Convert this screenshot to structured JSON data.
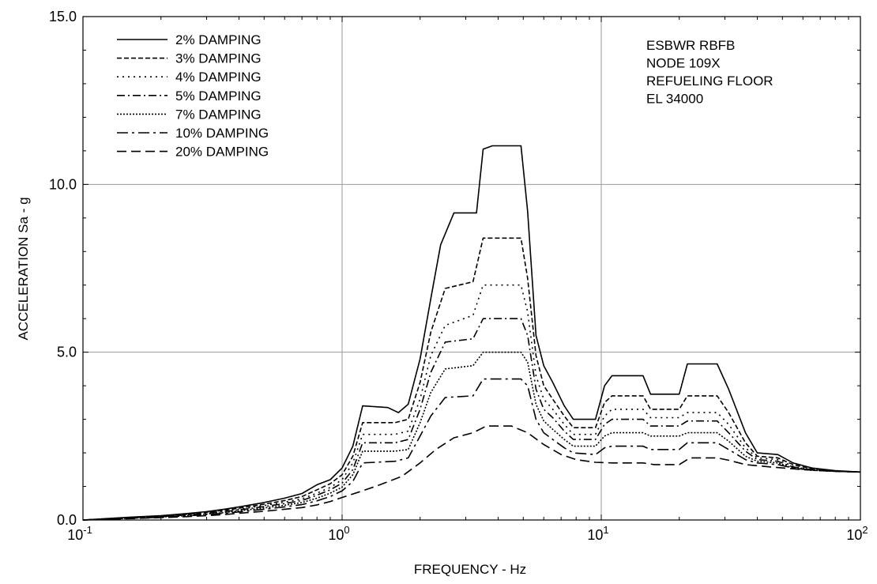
{
  "chart_data": {
    "type": "line",
    "title": "",
    "xlabel": "FREQUENCY - Hz",
    "ylabel": "ACCELERATION Sa - g",
    "x_scale": "log",
    "xlim": [
      0.1,
      100
    ],
    "ylim": [
      0,
      15
    ],
    "grid": true,
    "legend_placement": "top-left",
    "x_tick_labels": [
      {
        "base": "10",
        "exp": "-1"
      },
      {
        "base": "10",
        "exp": "0"
      },
      {
        "base": "10",
        "exp": "1"
      },
      {
        "base": "10",
        "exp": "2"
      }
    ],
    "y_tick_labels": [
      "0.0",
      "5.0",
      "10.0",
      "15.0"
    ],
    "annotations": [
      "ESBWR RBFB",
      "NODE 109X",
      "REFUELING FLOOR",
      "EL 34000"
    ],
    "series": [
      {
        "name": "2% DAMPING",
        "dash": "solid",
        "points": [
          [
            0.1,
            0.0
          ],
          [
            0.15,
            0.08
          ],
          [
            0.2,
            0.13
          ],
          [
            0.25,
            0.19
          ],
          [
            0.3,
            0.25
          ],
          [
            0.35,
            0.32
          ],
          [
            0.4,
            0.39
          ],
          [
            0.5,
            0.52
          ],
          [
            0.6,
            0.65
          ],
          [
            0.7,
            0.79
          ],
          [
            0.8,
            1.05
          ],
          [
            0.9,
            1.2
          ],
          [
            1.0,
            1.55
          ],
          [
            1.1,
            2.2
          ],
          [
            1.2,
            3.4
          ],
          [
            1.5,
            3.35
          ],
          [
            1.65,
            3.2
          ],
          [
            1.8,
            3.45
          ],
          [
            2.0,
            4.8
          ],
          [
            2.2,
            6.6
          ],
          [
            2.4,
            8.2
          ],
          [
            2.7,
            9.15
          ],
          [
            3.3,
            9.15
          ],
          [
            3.5,
            11.05
          ],
          [
            3.8,
            11.15
          ],
          [
            4.9,
            11.15
          ],
          [
            5.2,
            9.2
          ],
          [
            5.6,
            5.5
          ],
          [
            6.0,
            4.6
          ],
          [
            6.5,
            4.1
          ],
          [
            7.2,
            3.4
          ],
          [
            7.8,
            3.0
          ],
          [
            9.5,
            3.0
          ],
          [
            10.3,
            4.0
          ],
          [
            11.0,
            4.3
          ],
          [
            14.5,
            4.3
          ],
          [
            15.5,
            3.75
          ],
          [
            20.0,
            3.75
          ],
          [
            21.5,
            4.65
          ],
          [
            28.0,
            4.65
          ],
          [
            31.0,
            3.9
          ],
          [
            36.0,
            2.6
          ],
          [
            40.0,
            2.0
          ],
          [
            48.0,
            1.95
          ],
          [
            55.0,
            1.7
          ],
          [
            65.0,
            1.55
          ],
          [
            80.0,
            1.47
          ],
          [
            100.0,
            1.43
          ]
        ]
      },
      {
        "name": "3% DAMPING",
        "dash": "6,3",
        "points": [
          [
            0.1,
            0.0
          ],
          [
            0.15,
            0.07
          ],
          [
            0.2,
            0.12
          ],
          [
            0.25,
            0.17
          ],
          [
            0.3,
            0.23
          ],
          [
            0.35,
            0.29
          ],
          [
            0.4,
            0.35
          ],
          [
            0.5,
            0.47
          ],
          [
            0.6,
            0.58
          ],
          [
            0.7,
            0.7
          ],
          [
            0.8,
            0.9
          ],
          [
            0.9,
            1.08
          ],
          [
            1.0,
            1.35
          ],
          [
            1.1,
            1.9
          ],
          [
            1.2,
            2.9
          ],
          [
            1.6,
            2.9
          ],
          [
            1.8,
            3.0
          ],
          [
            2.0,
            4.1
          ],
          [
            2.2,
            5.6
          ],
          [
            2.5,
            6.9
          ],
          [
            3.2,
            7.1
          ],
          [
            3.5,
            8.4
          ],
          [
            4.9,
            8.4
          ],
          [
            5.2,
            7.2
          ],
          [
            5.6,
            4.9
          ],
          [
            6.0,
            4.0
          ],
          [
            6.5,
            3.6
          ],
          [
            7.2,
            3.1
          ],
          [
            7.8,
            2.75
          ],
          [
            9.5,
            2.75
          ],
          [
            10.3,
            3.5
          ],
          [
            11.0,
            3.7
          ],
          [
            14.5,
            3.7
          ],
          [
            15.5,
            3.3
          ],
          [
            20.0,
            3.3
          ],
          [
            21.5,
            3.7
          ],
          [
            28.0,
            3.7
          ],
          [
            31.0,
            3.2
          ],
          [
            36.0,
            2.3
          ],
          [
            40.0,
            1.9
          ],
          [
            48.0,
            1.85
          ],
          [
            55.0,
            1.65
          ],
          [
            65.0,
            1.53
          ],
          [
            80.0,
            1.46
          ],
          [
            100.0,
            1.43
          ]
        ]
      },
      {
        "name": "4% DAMPING",
        "dash": "2,5",
        "points": [
          [
            0.1,
            0.0
          ],
          [
            0.15,
            0.06
          ],
          [
            0.2,
            0.11
          ],
          [
            0.25,
            0.16
          ],
          [
            0.3,
            0.21
          ],
          [
            0.35,
            0.27
          ],
          [
            0.4,
            0.32
          ],
          [
            0.5,
            0.43
          ],
          [
            0.6,
            0.53
          ],
          [
            0.7,
            0.63
          ],
          [
            0.8,
            0.8
          ],
          [
            0.9,
            0.97
          ],
          [
            1.0,
            1.2
          ],
          [
            1.1,
            1.7
          ],
          [
            1.2,
            2.55
          ],
          [
            1.6,
            2.55
          ],
          [
            1.8,
            2.65
          ],
          [
            2.0,
            3.6
          ],
          [
            2.2,
            4.9
          ],
          [
            2.5,
            5.8
          ],
          [
            3.2,
            6.1
          ],
          [
            3.5,
            7.0
          ],
          [
            4.9,
            7.0
          ],
          [
            5.2,
            6.2
          ],
          [
            5.6,
            4.3
          ],
          [
            6.0,
            3.6
          ],
          [
            6.5,
            3.3
          ],
          [
            7.2,
            2.85
          ],
          [
            7.8,
            2.55
          ],
          [
            9.5,
            2.55
          ],
          [
            10.3,
            3.1
          ],
          [
            11.0,
            3.3
          ],
          [
            14.5,
            3.3
          ],
          [
            15.5,
            3.05
          ],
          [
            20.0,
            3.05
          ],
          [
            21.5,
            3.2
          ],
          [
            28.0,
            3.2
          ],
          [
            31.0,
            2.85
          ],
          [
            36.0,
            2.15
          ],
          [
            40.0,
            1.85
          ],
          [
            48.0,
            1.8
          ],
          [
            55.0,
            1.6
          ],
          [
            65.0,
            1.5
          ],
          [
            80.0,
            1.45
          ],
          [
            100.0,
            1.43
          ]
        ]
      },
      {
        "name": "5% DAMPING",
        "dash": "10,4,2,4",
        "points": [
          [
            0.1,
            0.0
          ],
          [
            0.15,
            0.06
          ],
          [
            0.2,
            0.1
          ],
          [
            0.25,
            0.15
          ],
          [
            0.3,
            0.2
          ],
          [
            0.35,
            0.25
          ],
          [
            0.4,
            0.3
          ],
          [
            0.5,
            0.4
          ],
          [
            0.6,
            0.49
          ],
          [
            0.7,
            0.58
          ],
          [
            0.8,
            0.74
          ],
          [
            0.9,
            0.9
          ],
          [
            1.0,
            1.1
          ],
          [
            1.1,
            1.5
          ],
          [
            1.2,
            2.3
          ],
          [
            1.6,
            2.3
          ],
          [
            1.8,
            2.4
          ],
          [
            2.0,
            3.3
          ],
          [
            2.2,
            4.4
          ],
          [
            2.5,
            5.3
          ],
          [
            3.2,
            5.4
          ],
          [
            3.5,
            6.0
          ],
          [
            4.9,
            6.0
          ],
          [
            5.2,
            5.5
          ],
          [
            5.6,
            3.9
          ],
          [
            6.0,
            3.3
          ],
          [
            6.5,
            3.05
          ],
          [
            7.2,
            2.65
          ],
          [
            7.8,
            2.4
          ],
          [
            9.5,
            2.4
          ],
          [
            10.3,
            2.85
          ],
          [
            11.0,
            3.0
          ],
          [
            14.5,
            3.0
          ],
          [
            15.5,
            2.8
          ],
          [
            20.0,
            2.8
          ],
          [
            21.5,
            2.95
          ],
          [
            28.0,
            2.95
          ],
          [
            31.0,
            2.6
          ],
          [
            36.0,
            2.05
          ],
          [
            40.0,
            1.8
          ],
          [
            48.0,
            1.75
          ],
          [
            55.0,
            1.58
          ],
          [
            65.0,
            1.5
          ],
          [
            80.0,
            1.45
          ],
          [
            100.0,
            1.43
          ]
        ]
      },
      {
        "name": "7% DAMPING",
        "dash": "2,2",
        "points": [
          [
            0.1,
            0.0
          ],
          [
            0.15,
            0.05
          ],
          [
            0.2,
            0.09
          ],
          [
            0.25,
            0.13
          ],
          [
            0.3,
            0.18
          ],
          [
            0.35,
            0.22
          ],
          [
            0.4,
            0.27
          ],
          [
            0.5,
            0.36
          ],
          [
            0.6,
            0.44
          ],
          [
            0.7,
            0.52
          ],
          [
            0.8,
            0.65
          ],
          [
            0.9,
            0.8
          ],
          [
            1.0,
            0.98
          ],
          [
            1.1,
            1.35
          ],
          [
            1.2,
            2.05
          ],
          [
            1.6,
            2.05
          ],
          [
            1.8,
            2.1
          ],
          [
            2.0,
            2.9
          ],
          [
            2.2,
            3.8
          ],
          [
            2.5,
            4.5
          ],
          [
            3.2,
            4.6
          ],
          [
            3.5,
            5.0
          ],
          [
            4.9,
            5.0
          ],
          [
            5.2,
            4.7
          ],
          [
            5.6,
            3.45
          ],
          [
            6.0,
            2.95
          ],
          [
            6.5,
            2.7
          ],
          [
            7.2,
            2.4
          ],
          [
            7.8,
            2.2
          ],
          [
            9.5,
            2.2
          ],
          [
            10.3,
            2.5
          ],
          [
            11.0,
            2.6
          ],
          [
            14.5,
            2.6
          ],
          [
            15.5,
            2.5
          ],
          [
            20.0,
            2.5
          ],
          [
            21.5,
            2.6
          ],
          [
            28.0,
            2.6
          ],
          [
            31.0,
            2.35
          ],
          [
            36.0,
            1.9
          ],
          [
            40.0,
            1.75
          ],
          [
            48.0,
            1.7
          ],
          [
            55.0,
            1.55
          ],
          [
            65.0,
            1.48
          ],
          [
            80.0,
            1.45
          ],
          [
            100.0,
            1.43
          ]
        ]
      },
      {
        "name": "10% DAMPING",
        "dash": "14,5,3,5",
        "points": [
          [
            0.1,
            0.0
          ],
          [
            0.15,
            0.05
          ],
          [
            0.2,
            0.08
          ],
          [
            0.25,
            0.12
          ],
          [
            0.3,
            0.16
          ],
          [
            0.35,
            0.2
          ],
          [
            0.4,
            0.24
          ],
          [
            0.5,
            0.32
          ],
          [
            0.6,
            0.39
          ],
          [
            0.7,
            0.46
          ],
          [
            0.8,
            0.57
          ],
          [
            0.9,
            0.7
          ],
          [
            1.0,
            0.87
          ],
          [
            1.1,
            1.15
          ],
          [
            1.2,
            1.7
          ],
          [
            1.6,
            1.75
          ],
          [
            1.8,
            1.85
          ],
          [
            2.0,
            2.5
          ],
          [
            2.2,
            3.1
          ],
          [
            2.5,
            3.65
          ],
          [
            3.2,
            3.7
          ],
          [
            3.5,
            4.2
          ],
          [
            4.9,
            4.2
          ],
          [
            5.2,
            4.0
          ],
          [
            5.6,
            3.0
          ],
          [
            6.0,
            2.6
          ],
          [
            6.5,
            2.4
          ],
          [
            7.2,
            2.15
          ],
          [
            7.8,
            2.0
          ],
          [
            9.5,
            1.95
          ],
          [
            10.3,
            2.15
          ],
          [
            11.0,
            2.2
          ],
          [
            14.5,
            2.2
          ],
          [
            15.5,
            2.1
          ],
          [
            20.0,
            2.1
          ],
          [
            21.5,
            2.3
          ],
          [
            28.0,
            2.3
          ],
          [
            31.0,
            2.1
          ],
          [
            36.0,
            1.8
          ],
          [
            40.0,
            1.7
          ],
          [
            48.0,
            1.65
          ],
          [
            55.0,
            1.55
          ],
          [
            65.0,
            1.48
          ],
          [
            80.0,
            1.45
          ],
          [
            100.0,
            1.43
          ]
        ]
      },
      {
        "name": "20% DAMPING",
        "dash": "12,6",
        "points": [
          [
            0.1,
            0.0
          ],
          [
            0.15,
            0.04
          ],
          [
            0.2,
            0.07
          ],
          [
            0.25,
            0.1
          ],
          [
            0.3,
            0.13
          ],
          [
            0.35,
            0.16
          ],
          [
            0.4,
            0.2
          ],
          [
            0.5,
            0.26
          ],
          [
            0.6,
            0.32
          ],
          [
            0.7,
            0.37
          ],
          [
            0.8,
            0.45
          ],
          [
            0.9,
            0.55
          ],
          [
            1.0,
            0.67
          ],
          [
            1.2,
            0.87
          ],
          [
            1.4,
            1.05
          ],
          [
            1.7,
            1.3
          ],
          [
            2.0,
            1.7
          ],
          [
            2.3,
            2.1
          ],
          [
            2.7,
            2.45
          ],
          [
            3.2,
            2.6
          ],
          [
            3.6,
            2.8
          ],
          [
            4.5,
            2.8
          ],
          [
            5.2,
            2.6
          ],
          [
            6.0,
            2.25
          ],
          [
            7.0,
            1.95
          ],
          [
            8.0,
            1.8
          ],
          [
            9.5,
            1.72
          ],
          [
            11.0,
            1.7
          ],
          [
            14.5,
            1.7
          ],
          [
            16.0,
            1.65
          ],
          [
            20.0,
            1.65
          ],
          [
            22.0,
            1.85
          ],
          [
            28.0,
            1.85
          ],
          [
            31.0,
            1.78
          ],
          [
            36.0,
            1.65
          ],
          [
            45.0,
            1.58
          ],
          [
            60.0,
            1.5
          ],
          [
            80.0,
            1.45
          ],
          [
            100.0,
            1.43
          ]
        ]
      }
    ]
  }
}
